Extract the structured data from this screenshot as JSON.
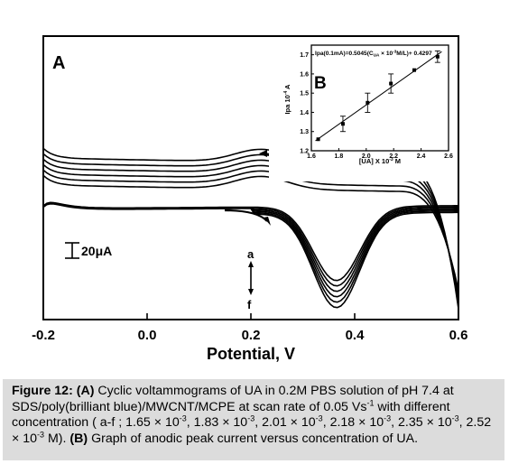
{
  "chart_data": [
    {
      "panel": "A",
      "type": "line",
      "description_text": "cyclic voltammograms, curves a to f",
      "xlabel": "Potential, V",
      "x_ticks": [
        "-0.2",
        "0.0",
        "0.2",
        "0.4",
        "0.6"
      ],
      "xlim": [
        -0.2,
        0.6
      ],
      "scale_bar_label": "20μA",
      "scale_bar_value_uA": 20,
      "curve_labels": [
        "a",
        "f"
      ],
      "series": [
        {
          "name": "a",
          "concentration": "1.65 × 10-3 M",
          "peak_potential_V": 0.365,
          "peak_depth": 0.0
        },
        {
          "name": "b",
          "concentration": "1.83 × 10-3 M",
          "peak_potential_V": 0.365,
          "peak_depth": 1.0
        },
        {
          "name": "c",
          "concentration": "2.01 × 10-3 M",
          "peak_potential_V": 0.365,
          "peak_depth": 2.0
        },
        {
          "name": "d",
          "concentration": "2.18 × 10-3 M",
          "peak_potential_V": 0.365,
          "peak_depth": 3.0
        },
        {
          "name": "e",
          "concentration": "2.35 × 10-3 M",
          "peak_potential_V": 0.365,
          "peak_depth": 4.0
        },
        {
          "name": "f",
          "concentration": "2.52 × 10-3 M",
          "peak_potential_V": 0.365,
          "peak_depth": 5.0
        }
      ]
    },
    {
      "panel": "B",
      "type": "scatter",
      "equation": "Ipa(0.1mA)=0.5045(C",
      "equation_sub": "UA",
      "equation_tail": "10",
      "equation_sup": "-3",
      "equation_end": "M/L)+ 0.4297",
      "xlabel": "[UA] X 10",
      "xlabel_sup": "-3",
      "xlabel_tail": " M",
      "ylabel": "Ipa 10",
      "ylabel_sup": "-4",
      "ylabel_tail": " A",
      "xlim": [
        1.6,
        2.6
      ],
      "ylim": [
        1.2,
        1.75
      ],
      "x_ticks": [
        "1.6",
        "1.8",
        "2.0",
        "2.2",
        "2.4",
        "2.6"
      ],
      "y_ticks": [
        "1.2",
        "1.3",
        "1.4",
        "1.5",
        "1.6",
        "1.7"
      ],
      "x": [
        1.65,
        1.83,
        2.01,
        2.18,
        2.35,
        2.52
      ],
      "y": [
        1.26,
        1.34,
        1.45,
        1.55,
        1.62,
        1.69
      ],
      "error": [
        0.005,
        0.04,
        0.05,
        0.05,
        0.005,
        0.03
      ],
      "fit": {
        "slope": 0.5045,
        "intercept": 0.4297
      }
    }
  ],
  "caption": {
    "label": "Figure 12:",
    "a_tag": "(A)",
    "a_text": " Cyclic voltammograms of UA in 0.2M PBS solution of pH 7.4 at SDS/poly(brilliant blue)/MWCNT/MCPE at scan rate of 0.05 Vs",
    "a_sup": "-1",
    "a_text2": " with different concentration ( a-f ; 1.65 × 10",
    "c2": ", 1.83 × 10",
    "c3": ", 2.01 × 10",
    "c4": ", 2.18 × 10",
    "c5": ", 2.35 × 10",
    "c6": ", 2.52 × 10",
    "exp": "-3",
    "end_a": " M).",
    "b_tag": "(B)",
    "b_text": " Graph of anodic peak current versus concentration of UA."
  }
}
